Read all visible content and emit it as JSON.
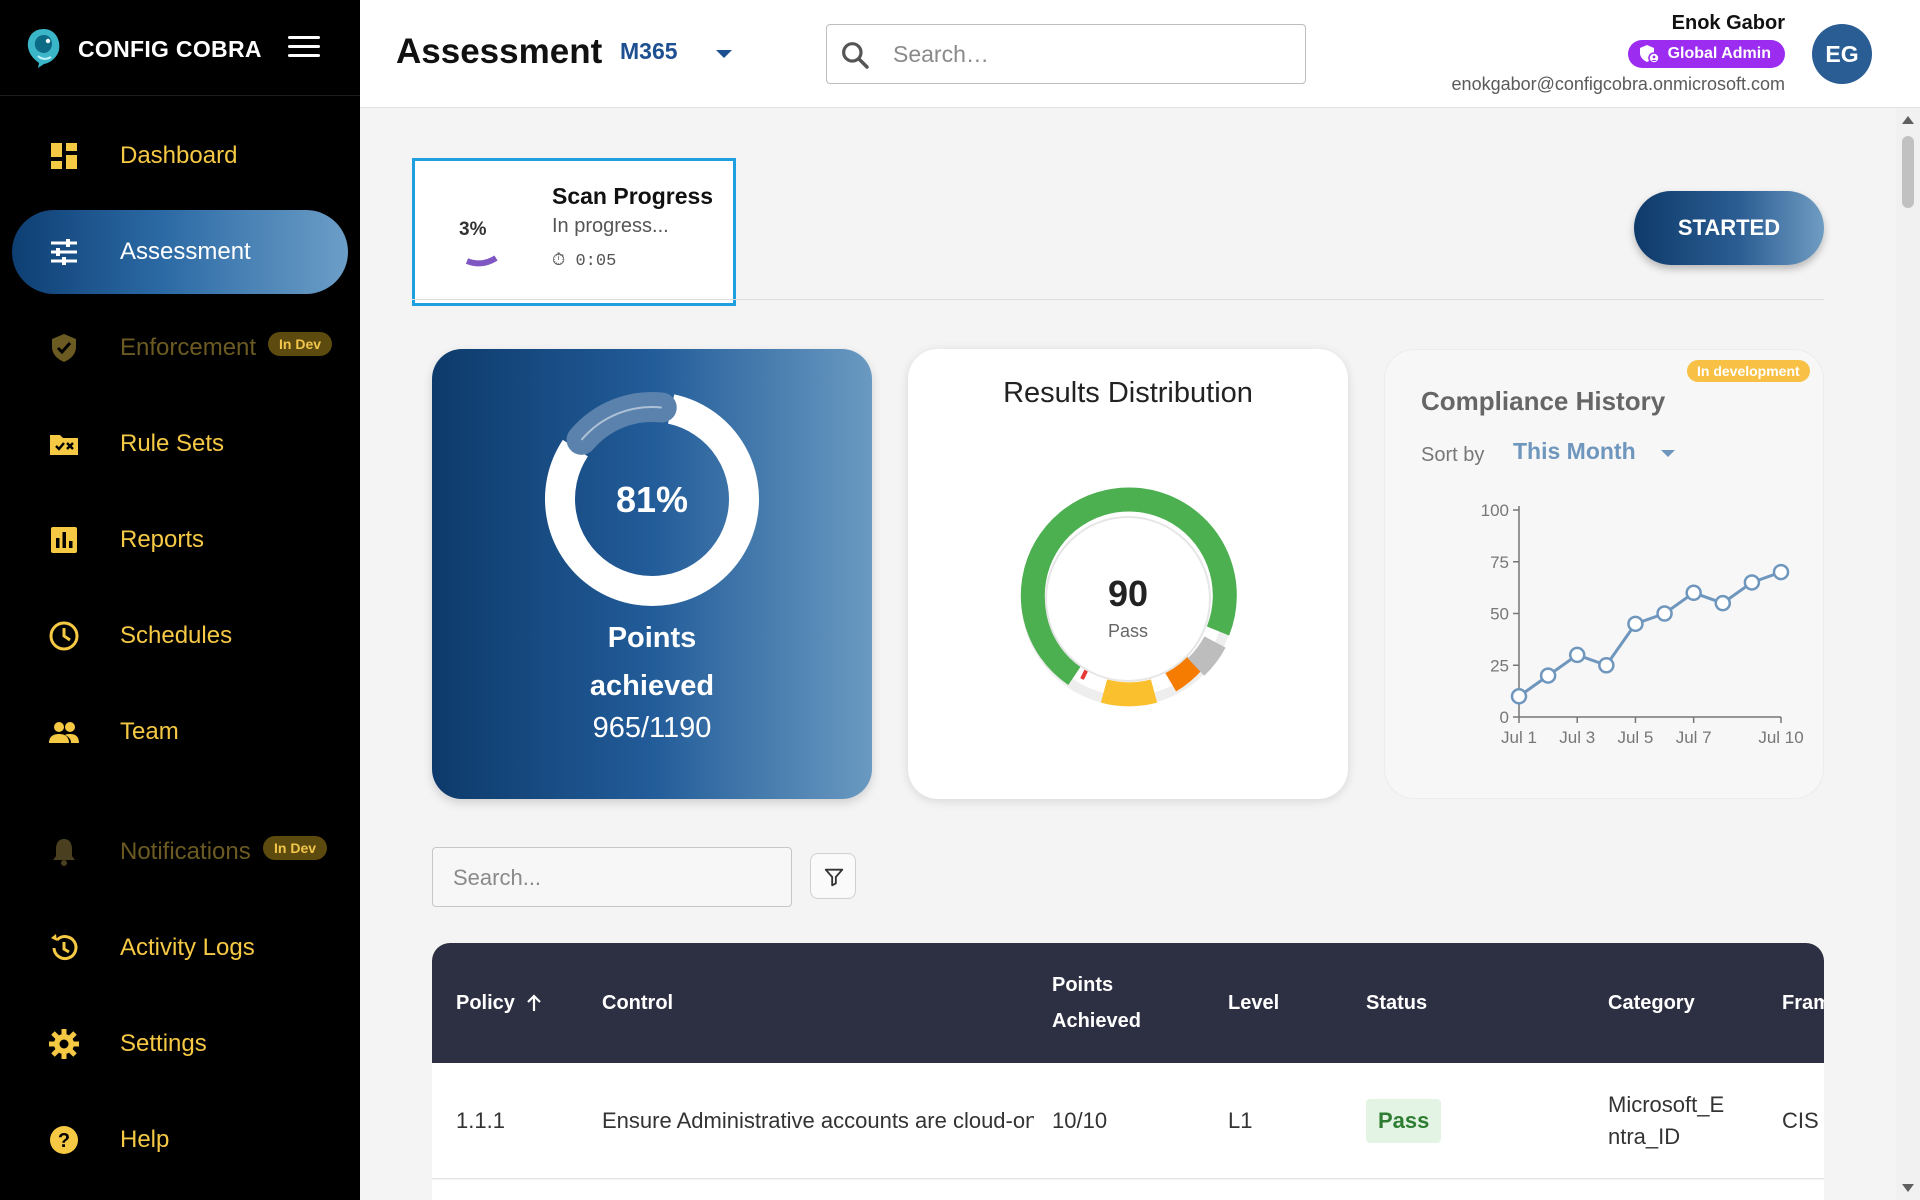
{
  "brand": {
    "name": "CONFIG COBRA"
  },
  "nav": [
    {
      "label": "Dashboard",
      "icon": "dashboard-icon",
      "active": false,
      "disabled": false
    },
    {
      "label": "Assessment",
      "icon": "tune-icon",
      "active": true,
      "disabled": false
    },
    {
      "label": "Enforcement",
      "icon": "shield-icon",
      "active": false,
      "disabled": true,
      "badge": "In Dev"
    },
    {
      "label": "Rule Sets",
      "icon": "folder-check-icon",
      "active": false,
      "disabled": false
    },
    {
      "label": "Reports",
      "icon": "bar-chart-icon",
      "active": false,
      "disabled": false
    },
    {
      "label": "Schedules",
      "icon": "clock-icon",
      "active": false,
      "disabled": false
    },
    {
      "label": "Team",
      "icon": "people-icon",
      "active": false,
      "disabled": false
    },
    {
      "label": "Notifications",
      "icon": "bell-icon",
      "active": false,
      "disabled": true,
      "badge": "In Dev"
    },
    {
      "label": "Activity Logs",
      "icon": "history-icon",
      "active": false,
      "disabled": false
    },
    {
      "label": "Settings",
      "icon": "gear-icon",
      "active": false,
      "disabled": false
    },
    {
      "label": "Help",
      "icon": "help-icon",
      "active": false,
      "disabled": false
    }
  ],
  "header": {
    "title": "Assessment",
    "platform": "M365",
    "search_placeholder": "Search…",
    "user_name": "Enok Gabor",
    "role": "Global Admin",
    "email": "enokgabor@configcobra.onmicrosoft.com",
    "avatar_initials": "EG"
  },
  "scan": {
    "title": "Scan Progress",
    "percent_label": "3%",
    "progress": 0.03,
    "status": "In progress...",
    "elapsed": "0:05",
    "button": "STARTED"
  },
  "points": {
    "percent_label": "81%",
    "fraction": 0.81,
    "label_line1": "Points",
    "label_line2": "achieved",
    "value": "965/1190"
  },
  "results": {
    "title": "Results Distribution",
    "center_value": "90",
    "center_label": "Pass",
    "segment_colors": {
      "pass": "#4caf50",
      "fail": "#e53935",
      "medium": "#fbc02d",
      "high": "#f57c00",
      "skipped": "#bdbdbd"
    }
  },
  "history": {
    "title": "Compliance History",
    "badge": "In development",
    "sort_label": "Sort by",
    "sort_value": "This Month",
    "accent": "#6f96bd"
  },
  "chart_data": {
    "type": "line",
    "title": "Compliance History",
    "x": [
      "Jul 1",
      "Jul 2",
      "Jul 3",
      "Jul 4",
      "Jul 5",
      "Jul 6",
      "Jul 7",
      "Jul 8",
      "Jul 9",
      "Jul 10"
    ],
    "x_tick_labels": [
      "Jul 1",
      "Jul 3",
      "Jul 5",
      "Jul 7",
      "Jul 10"
    ],
    "series": [
      {
        "values": [
          10,
          20,
          30,
          25,
          45,
          50,
          60,
          55,
          65,
          70
        ],
        "color": "#6f96bd"
      }
    ],
    "ylim": [
      0,
      100
    ],
    "y_ticks": [
      0,
      25,
      50,
      75,
      100
    ],
    "grid": false,
    "legend": "none"
  },
  "table": {
    "search_placeholder": "Search...",
    "columns": [
      "Policy",
      "Control",
      "Points\nAchieved",
      "Level",
      "Status",
      "Category",
      "Framework"
    ],
    "rows": [
      {
        "policy": "1.1.1",
        "control": "Ensure Administrative accounts are cloud-only",
        "points": "10/10",
        "level": "L1",
        "status": "Pass",
        "category": "Microsoft_Entra_ID",
        "framework": "CIS"
      }
    ]
  }
}
